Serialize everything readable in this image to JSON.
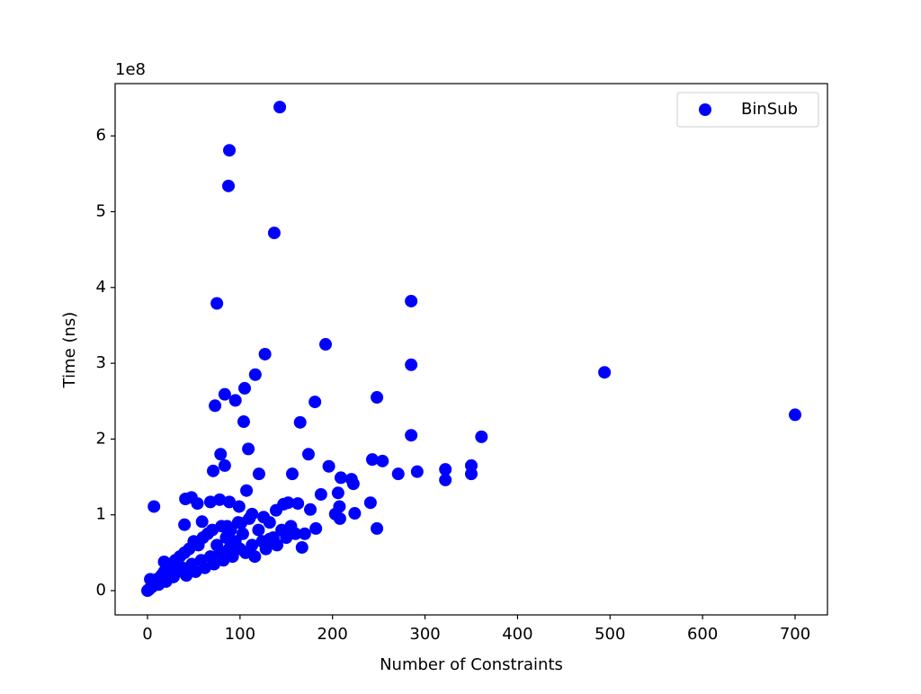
{
  "chart_data": {
    "type": "scatter",
    "x_label": "Number of Constraints",
    "y_label": "Time (ns)",
    "y_offset_label": "1e8",
    "legend": "upper right",
    "xlim": [
      -35,
      735
    ],
    "xticks": [
      0,
      100,
      200,
      300,
      400,
      500,
      600,
      700
    ],
    "ylim": [
      -0.32,
      6.69
    ],
    "yticks": [
      0,
      1,
      2,
      3,
      4,
      5,
      6
    ],
    "series": [
      {
        "name": "BinSub",
        "color": "#0000ff",
        "x": [
          143,
          88.5,
          87.5,
          137,
          285,
          75,
          192.5,
          127,
          116.5,
          285,
          494,
          700,
          105,
          83.5,
          95,
          73,
          181,
          248,
          104,
          165,
          285,
          361,
          109,
          79,
          174,
          243,
          254,
          83.5,
          71,
          120.5,
          156.5,
          196,
          271,
          291.5,
          322,
          350,
          322,
          350,
          209,
          220.5,
          222.5,
          107,
          206,
          187.5,
          7,
          41,
          47.5,
          54,
          68,
          78,
          88.5,
          99,
          147,
          162.5,
          152,
          207.5,
          241,
          224,
          248,
          182,
          203,
          208,
          176,
          40,
          59,
          86,
          101,
          113,
          125.5,
          139,
          167,
          132,
          0,
          2,
          5,
          8,
          10,
          12,
          15,
          18,
          20,
          22,
          25,
          28,
          30,
          33,
          35,
          38,
          40,
          42,
          45,
          48,
          50,
          52,
          55,
          58,
          60,
          62,
          65,
          68,
          70,
          72,
          75,
          78,
          80,
          82,
          85,
          88,
          90,
          92,
          95,
          98,
          100,
          103,
          106,
          110,
          113,
          116,
          120,
          124,
          128,
          132,
          136,
          140,
          145,
          150,
          155,
          160,
          170,
          18,
          3,
          6,
          1
        ],
        "values": [
          6.38,
          5.81,
          5.34,
          4.72,
          3.82,
          3.79,
          3.25,
          3.12,
          2.85,
          2.98,
          2.88,
          2.32,
          2.67,
          2.59,
          2.51,
          2.44,
          2.49,
          2.55,
          2.23,
          2.22,
          2.05,
          2.03,
          1.87,
          1.8,
          1.8,
          1.73,
          1.71,
          1.65,
          1.58,
          1.54,
          1.54,
          1.64,
          1.54,
          1.57,
          1.6,
          1.65,
          1.46,
          1.54,
          1.49,
          1.47,
          1.41,
          1.32,
          1.29,
          1.27,
          1.11,
          1.21,
          1.23,
          1.15,
          1.17,
          1.2,
          1.17,
          1.11,
          1.14,
          1.15,
          1.16,
          1.11,
          1.16,
          1.02,
          0.82,
          0.82,
          1.01,
          0.95,
          1.07,
          0.87,
          0.91,
          0.85,
          0.89,
          1.01,
          0.97,
          1.06,
          0.57,
          0.68,
          0,
          0.02,
          0.05,
          0.1,
          0.15,
          0.08,
          0.2,
          0.25,
          0.12,
          0.35,
          0.3,
          0.18,
          0.4,
          0.25,
          0.45,
          0.3,
          0.5,
          0.2,
          0.55,
          0.35,
          0.65,
          0.25,
          0.6,
          0.4,
          0.7,
          0.3,
          0.75,
          0.45,
          0.8,
          0.35,
          0.6,
          0.5,
          0.85,
          0.4,
          0.7,
          0.55,
          0.8,
          0.45,
          0.65,
          0.9,
          0.55,
          0.75,
          0.5,
          0.95,
          0.6,
          0.45,
          0.8,
          0.65,
          0.55,
          0.9,
          0.7,
          0.6,
          0.8,
          0.7,
          0.85,
          0.75,
          0.75,
          0.38,
          0.15,
          0.08,
          0.01
        ]
      }
    ]
  }
}
